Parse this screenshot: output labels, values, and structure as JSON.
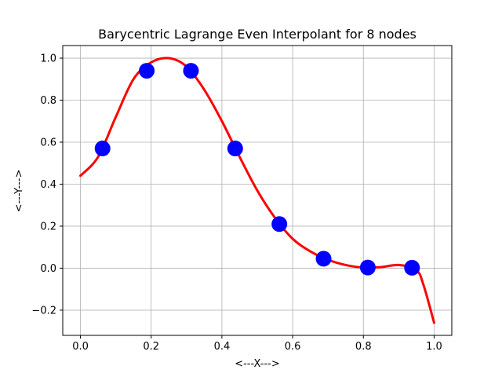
{
  "chart_data": {
    "type": "scatter+line",
    "title": "Barycentric Lagrange Even Interpolant for 8 nodes",
    "xlabel": "<---X--->",
    "ylabel": "<---Y--->",
    "xlim": [
      -0.05,
      1.05
    ],
    "ylim": [
      -0.32,
      1.06
    ],
    "x_ticks": [
      0.0,
      0.2,
      0.4,
      0.6,
      0.8,
      1.0
    ],
    "x_tick_labels": [
      "0.0",
      "0.2",
      "0.4",
      "0.6",
      "0.8",
      "1.0"
    ],
    "y_ticks": [
      -0.2,
      0.0,
      0.2,
      0.4,
      0.6,
      0.8,
      1.0
    ],
    "y_tick_labels": [
      "−0.2",
      "0.0",
      "0.2",
      "0.4",
      "0.6",
      "0.8",
      "1.0"
    ],
    "grid": true,
    "nodes": {
      "x": [
        0.0625,
        0.1875,
        0.3125,
        0.4375,
        0.5625,
        0.6875,
        0.8125,
        0.9375
      ],
      "y": [
        0.57,
        0.94,
        0.94,
        0.57,
        0.21,
        0.045,
        0.003,
        0.002
      ],
      "color": "#0000ff"
    },
    "curve": {
      "color": "#ff0000",
      "x": [
        0.0,
        0.05,
        0.1,
        0.15,
        0.2,
        0.25,
        0.3,
        0.35,
        0.4,
        0.45,
        0.5,
        0.55,
        0.6,
        0.65,
        0.7,
        0.75,
        0.8,
        0.85,
        0.9,
        0.95,
        0.97,
        1.0
      ],
      "y": [
        0.44,
        0.53,
        0.72,
        0.9,
        0.98,
        1.0,
        0.96,
        0.85,
        0.7,
        0.53,
        0.37,
        0.24,
        0.14,
        0.08,
        0.04,
        0.015,
        0.003,
        0.005,
        0.015,
        -0.01,
        -0.08,
        -0.26
      ]
    }
  }
}
